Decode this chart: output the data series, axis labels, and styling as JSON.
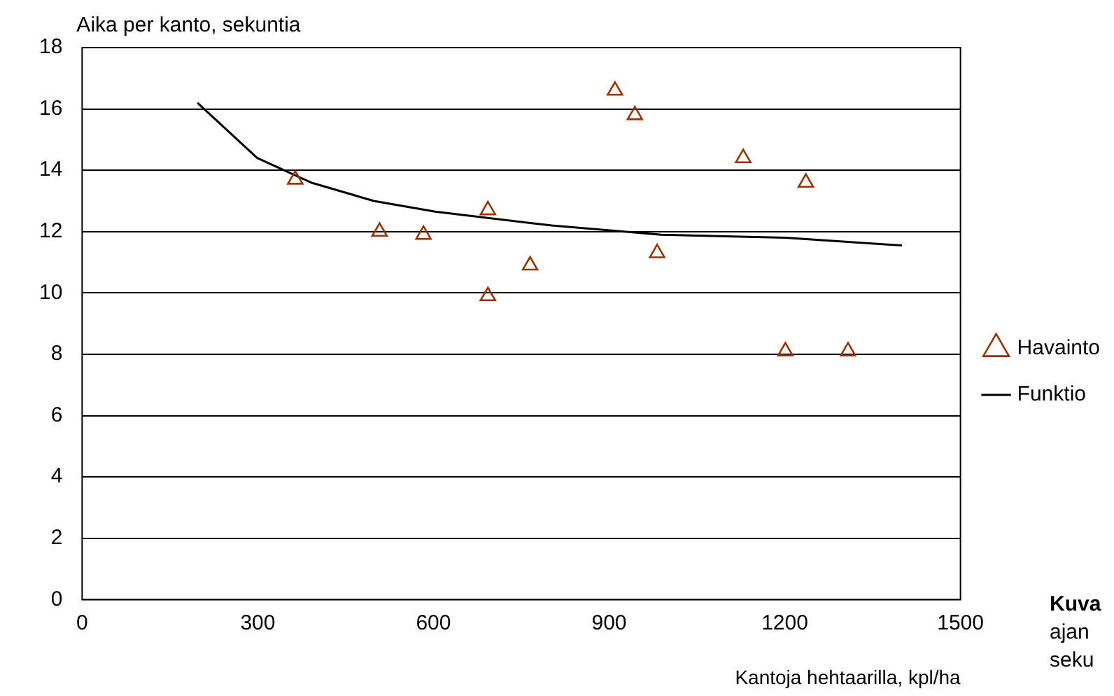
{
  "chart_data": {
    "type": "scatter",
    "ylabel": "Aika per kanto, sekuntia",
    "xlabel": "Kantoja hehtaarilla, kpl/ha",
    "series": [
      {
        "name": "Havainto",
        "color": "#993300",
        "marker": "triangle",
        "x": [
          364,
          508,
          583,
          693,
          693,
          765,
          910,
          944,
          982,
          1129,
          1236,
          1201,
          1308
        ],
        "values": [
          13.7,
          12.0,
          11.9,
          12.7,
          9.9,
          10.9,
          16.6,
          15.8,
          11.3,
          14.4,
          13.6,
          8.1,
          8.1
        ]
      },
      {
        "name": "Funktio",
        "type": "line",
        "color": "#000000",
        "marker": "none",
        "x": [
          197,
          299,
          391,
          498,
          603,
          802,
          989,
          1201,
          1400
        ],
        "values": [
          16.2,
          14.4,
          13.6,
          13.0,
          12.65,
          12.2,
          11.9,
          11.8,
          11.55
        ]
      }
    ],
    "xlim": [
      0,
      1500
    ],
    "xticks": [
      0,
      300,
      600,
      900,
      1200,
      1500
    ],
    "ylim": [
      0,
      18
    ],
    "yticks": [
      0,
      2,
      4,
      6,
      8,
      10,
      12,
      14,
      16,
      18
    ],
    "grid": "y",
    "legend": "right",
    "annotations": [
      "Kuva",
      "ajan",
      "seku"
    ]
  }
}
